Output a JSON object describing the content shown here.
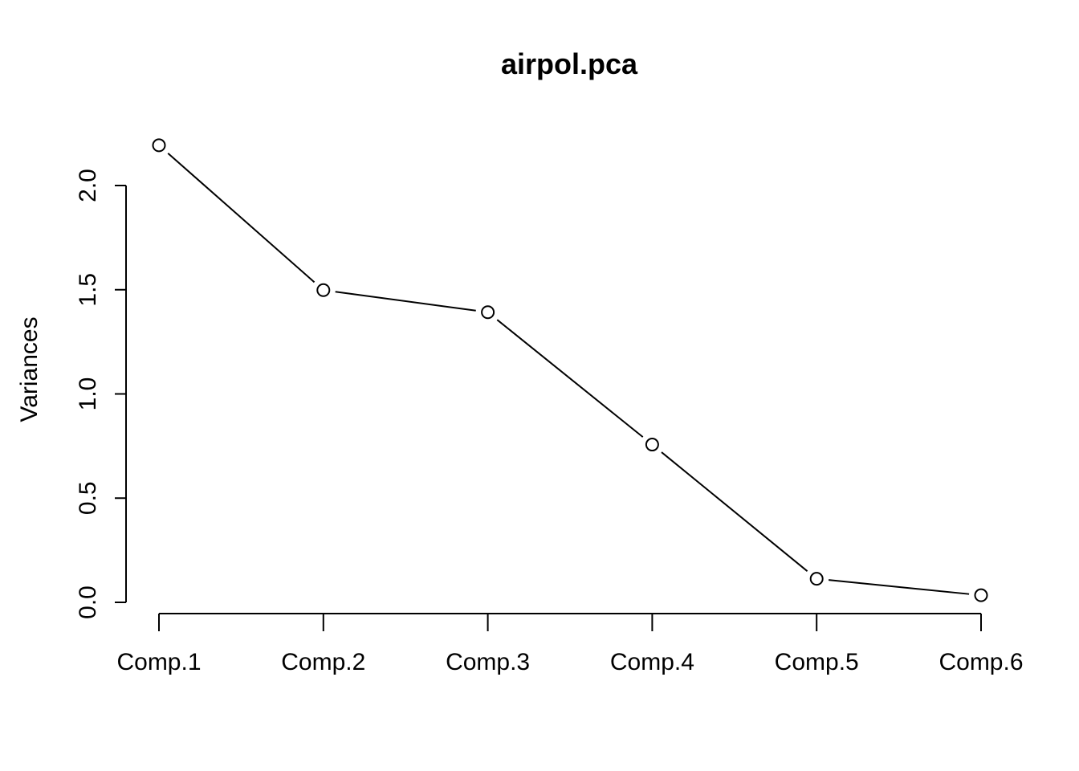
{
  "chart_data": {
    "type": "line",
    "title": "airpol.pca",
    "xlabel": "",
    "ylabel": "Variances",
    "categories": [
      "Comp.1",
      "Comp.2",
      "Comp.3",
      "Comp.4",
      "Comp.5",
      "Comp.6"
    ],
    "values": [
      2.193,
      1.498,
      1.392,
      0.757,
      0.113,
      0.034
    ],
    "ylim": [
      0,
      2.0
    ],
    "yticks": [
      "0.0",
      "0.5",
      "1.0",
      "1.5",
      "2.0"
    ],
    "grid": false,
    "legend": "none",
    "marker": "open-circle",
    "line_color": "#000000"
  }
}
